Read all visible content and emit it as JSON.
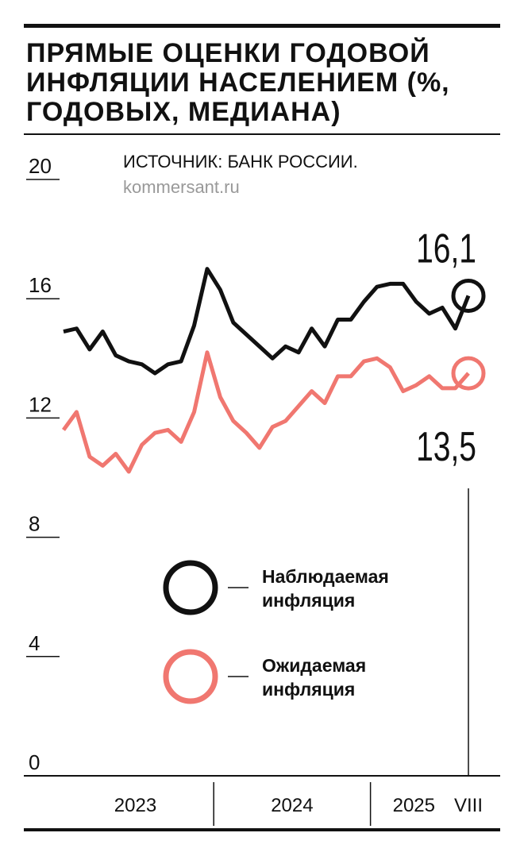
{
  "chart_data": {
    "type": "line",
    "title": "ПРЯМЫЕ ОЦЕНКИ ГОДОВОЙ ИНФЛЯЦИИ НАСЕЛЕНИЕМ (%, ГОДОВЫХ, МЕДИАНА)",
    "source": "ИСТОЧНИК: БАНК РОССИИ.",
    "credit": "kommersant.ru",
    "categories": [
      null,
      null,
      null,
      null,
      null,
      null,
      null,
      null,
      null,
      null,
      null,
      null,
      null,
      null,
      null,
      null,
      null,
      null,
      null,
      null,
      null,
      null,
      null,
      null,
      null,
      null,
      null,
      null,
      null,
      null,
      null,
      null
    ],
    "year_labels": [
      "2023",
      "2024",
      "2025"
    ],
    "last_label": "VIII",
    "ylim": [
      0,
      20
    ],
    "yticks": [
      0,
      4,
      8,
      12,
      16,
      20
    ],
    "series": [
      {
        "name": "Наблюдаемая инфляция",
        "color": "#111111",
        "values": [
          14.9,
          15.0,
          14.3,
          14.9,
          14.1,
          13.9,
          13.8,
          13.5,
          13.8,
          13.9,
          15.1,
          17.0,
          16.3,
          15.2,
          14.8,
          14.4,
          14.0,
          14.4,
          14.2,
          15.0,
          14.4,
          15.3,
          15.3,
          15.9,
          16.4,
          16.5,
          16.5,
          15.9,
          15.5,
          15.7,
          15.0,
          16.1
        ],
        "end_label": "16,1"
      },
      {
        "name": "Ожидаемая инфляция",
        "color": "#f07770",
        "values": [
          11.6,
          12.2,
          10.7,
          10.4,
          10.8,
          10.2,
          11.1,
          11.5,
          11.6,
          11.2,
          12.2,
          14.2,
          12.7,
          11.9,
          11.5,
          11.0,
          11.7,
          11.9,
          12.4,
          12.9,
          12.5,
          13.4,
          13.4,
          13.9,
          14.0,
          13.7,
          12.9,
          13.1,
          13.4,
          13.0,
          13.0,
          13.5
        ],
        "end_label": "13,5"
      }
    ]
  }
}
